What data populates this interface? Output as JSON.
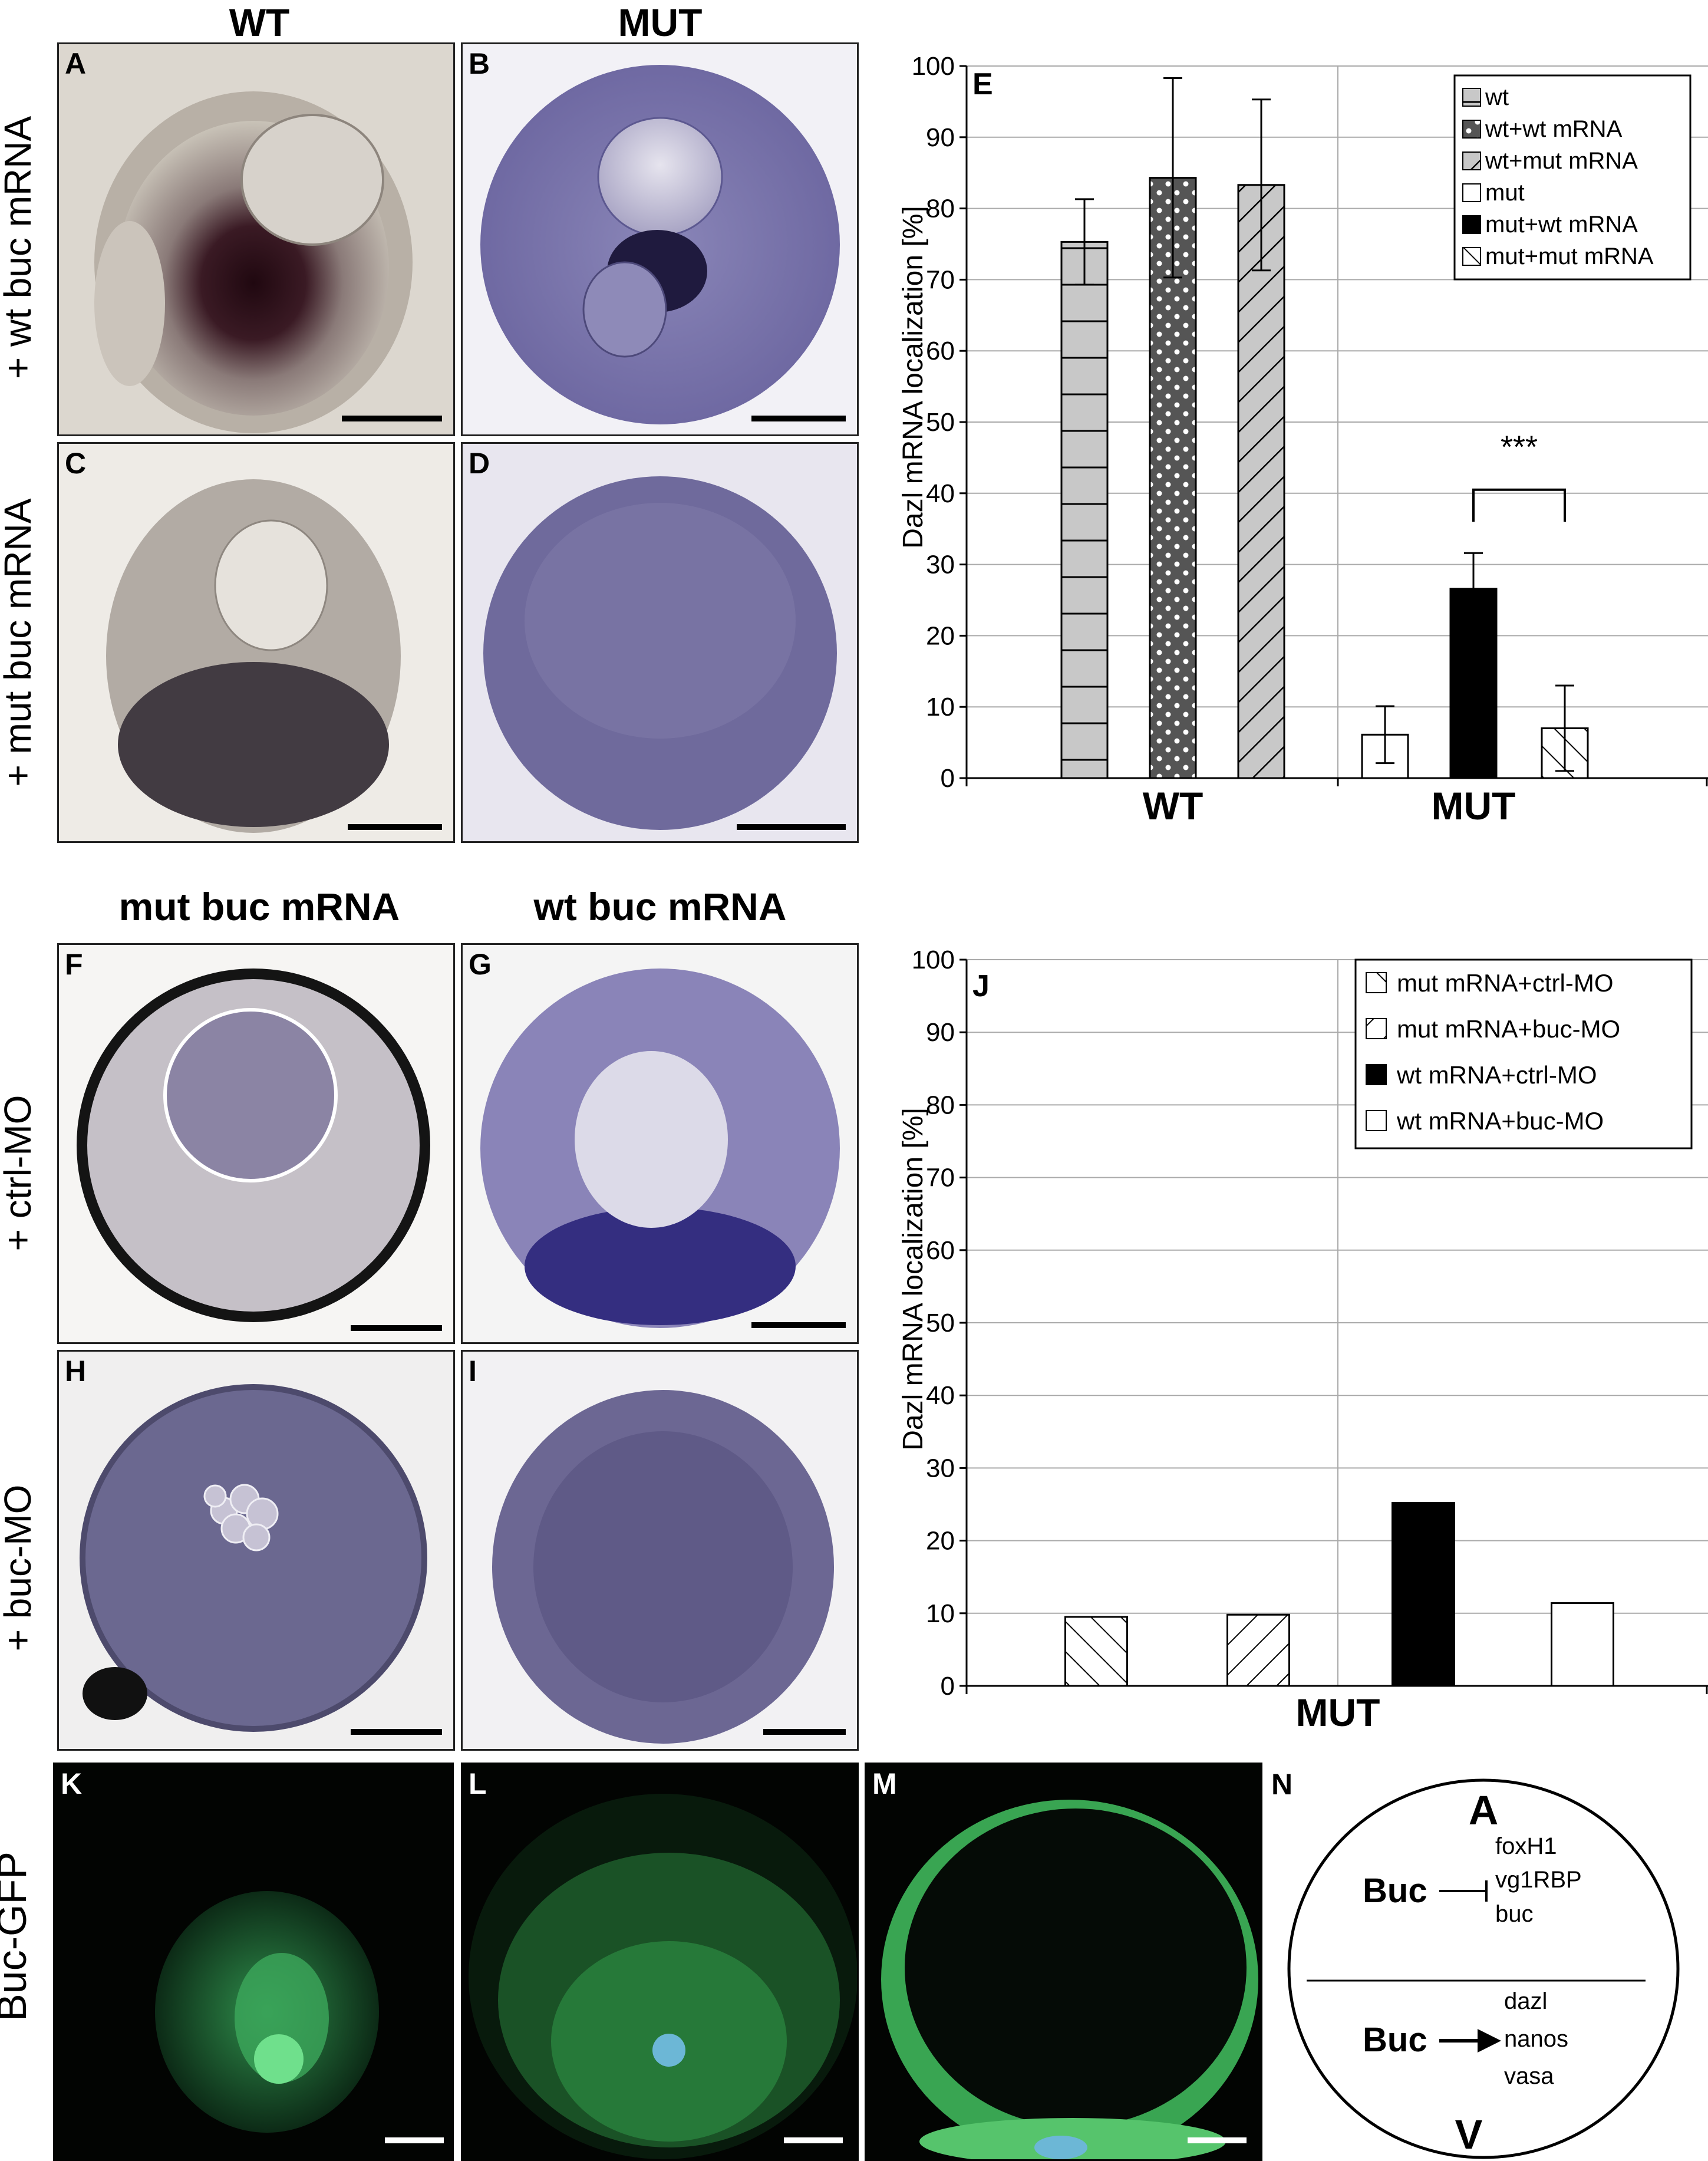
{
  "col_headers_top": [
    "WT",
    "MUT"
  ],
  "col_headers_mid": [
    "mut buc mRNA",
    "wt buc mRNA"
  ],
  "row_labels_top": [
    "+ wt buc mRNA",
    "+ mut buc mRNA"
  ],
  "row_labels_mid": [
    "+ ctrl-MO",
    "+ buc-MO"
  ],
  "row_label_bottom": "Buc-GFP",
  "panel_letters": {
    "A": "A",
    "B": "B",
    "C": "C",
    "D": "D",
    "F": "F",
    "G": "G",
    "H": "H",
    "I": "I",
    "K": "K",
    "L": "L",
    "M": "M",
    "N": "N"
  },
  "diagram_N": {
    "top_pole": "A",
    "bottom_pole": "V",
    "upper_protein": "Buc",
    "upper_targets": [
      "foxH1",
      "vg1RBP",
      "buc"
    ],
    "lower_protein": "Buc",
    "lower_targets": [
      "dazl",
      "nanos",
      "vasa"
    ]
  },
  "colors": {
    "bar_grey": "#c8c8c8",
    "dark_grey": "#555555",
    "black": "#000000",
    "white": "#ffffff",
    "stain_purple": "#7a72ad",
    "gfp_green": "#3fae5c"
  },
  "chart_data": [
    {
      "panel": "E",
      "type": "bar",
      "ylabel": "Dazl mRNA localization [%]",
      "ylim": [
        0,
        100
      ],
      "yticks": [
        "0",
        "10",
        "20",
        "30",
        "40",
        "50",
        "60",
        "70",
        "80",
        "90",
        "100"
      ],
      "groups": [
        "WT",
        "MUT"
      ],
      "series": [
        {
          "name": "wt",
          "group": "WT",
          "value": 75.3,
          "err": 6,
          "pattern": "hlines"
        },
        {
          "name": "wt+wt mRNA",
          "group": "WT",
          "value": 84.3,
          "err": 14,
          "pattern": "dots"
        },
        {
          "name": "wt+mut mRNA",
          "group": "WT",
          "value": 83.3,
          "err": 12,
          "pattern": "bdiag"
        },
        {
          "name": "mut",
          "group": "MUT",
          "value": 6.1,
          "err": 4,
          "pattern": "white"
        },
        {
          "name": "mut+wt mRNA",
          "group": "MUT",
          "value": 26.6,
          "err": 5,
          "pattern": "black"
        },
        {
          "name": "mut+mut mRNA",
          "group": "MUT",
          "value": 7.0,
          "err": 6,
          "pattern": "fdiag"
        }
      ],
      "significance": "***",
      "grid": true,
      "legend": "top-right"
    },
    {
      "panel": "J",
      "type": "bar",
      "ylabel": "Dazl mRNA localization [%]",
      "ylim": [
        0,
        100
      ],
      "yticks": [
        "0",
        "10",
        "20",
        "30",
        "40",
        "50",
        "60",
        "70",
        "80",
        "90",
        "100"
      ],
      "groups": [
        "MUT"
      ],
      "series": [
        {
          "name": "mut mRNA+ctrl-MO",
          "value": 9.5,
          "pattern": "fdiag"
        },
        {
          "name": "mut mRNA+buc-MO",
          "value": 9.8,
          "pattern": "bdiag"
        },
        {
          "name": "wt mRNA+ctrl-MO",
          "value": 25.2,
          "pattern": "black"
        },
        {
          "name": "wt mRNA+buc-MO",
          "value": 11.4,
          "pattern": "white"
        }
      ],
      "grid": true,
      "legend": "top-right"
    }
  ]
}
